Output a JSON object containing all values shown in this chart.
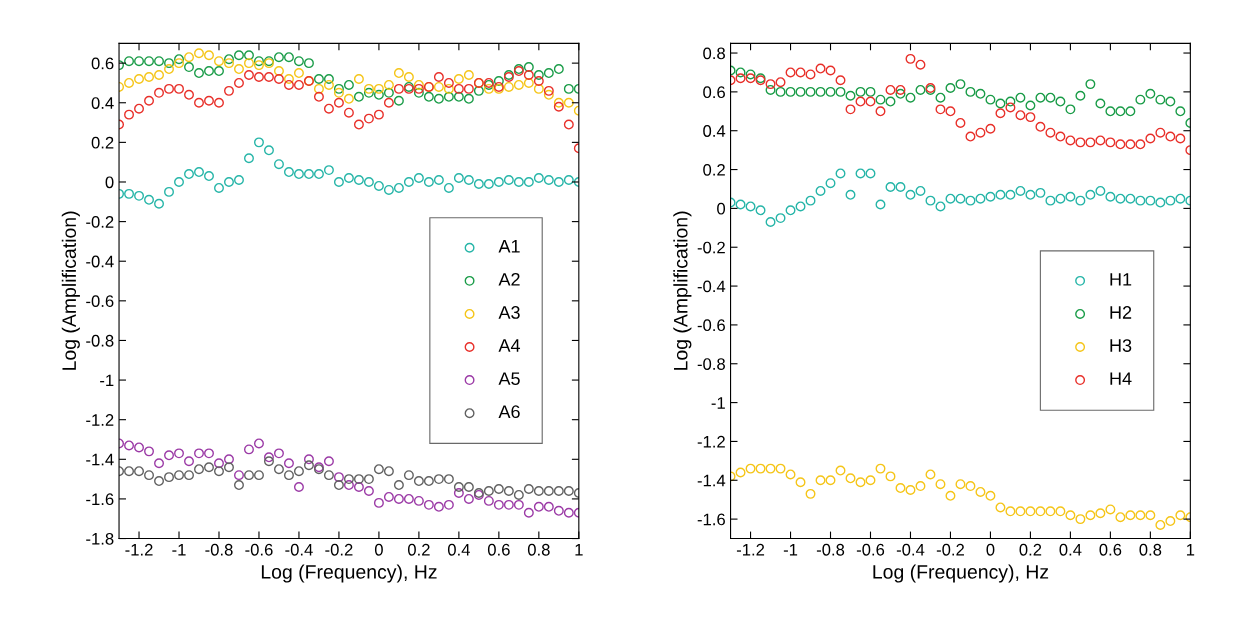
{
  "chart_data": [
    {
      "type": "scatter",
      "xlabel": "Log (Frequency), Hz",
      "ylabel": "Log (Amplification)",
      "marker": "circle",
      "legend": "center right",
      "grid": false,
      "x": [
        -1.3,
        -1.25,
        -1.2,
        -1.15,
        -1.1,
        -1.05,
        -1.0,
        -0.95,
        -0.9,
        -0.85,
        -0.8,
        -0.75,
        -0.7,
        -0.65,
        -0.6,
        -0.55,
        -0.5,
        -0.45,
        -0.4,
        -0.35,
        -0.3,
        -0.25,
        -0.2,
        -0.15,
        -0.1,
        -0.05,
        0,
        0.05,
        0.1,
        0.15,
        0.2,
        0.25,
        0.3,
        0.35,
        0.4,
        0.45,
        0.5,
        0.55,
        0.6,
        0.65,
        0.7,
        0.75,
        0.8,
        0.85,
        0.9,
        0.95,
        1.0
      ],
      "xlim": [
        -1.3,
        1
      ],
      "xticks": [
        -1.2,
        -1,
        -0.8,
        -0.6,
        -0.4,
        -0.2,
        0,
        0.2,
        0.4,
        0.6,
        0.8,
        1
      ],
      "ylim": [
        -1.8,
        0.7
      ],
      "yticks": [
        -1.8,
        -1.6,
        -1.4,
        -1.2,
        -1,
        -0.8,
        -0.6,
        -0.4,
        -0.2,
        0,
        0.2,
        0.4,
        0.6
      ],
      "series": [
        {
          "name": "A1",
          "color": "#26b5a8",
          "values": [
            -0.06,
            -0.06,
            -0.07,
            -0.09,
            -0.11,
            -0.05,
            0.0,
            0.04,
            0.05,
            0.03,
            -0.03,
            0.0,
            0.01,
            0.12,
            0.2,
            0.16,
            0.09,
            0.05,
            0.04,
            0.04,
            0.04,
            0.06,
            0.0,
            0.02,
            0.01,
            0.0,
            -0.02,
            -0.04,
            -0.03,
            0.0,
            0.02,
            0.0,
            0.01,
            -0.03,
            0.02,
            0.01,
            -0.01,
            -0.01,
            0.0,
            0.01,
            0.0,
            0.0,
            0.02,
            0.01,
            0.0,
            0.01,
            0.0
          ]
        },
        {
          "name": "A2",
          "color": "#1a9c48",
          "values": [
            0.59,
            0.61,
            0.61,
            0.61,
            0.61,
            0.6,
            0.62,
            0.58,
            0.55,
            0.56,
            0.56,
            0.62,
            0.64,
            0.64,
            0.61,
            0.61,
            0.63,
            0.63,
            0.61,
            0.6,
            0.52,
            0.52,
            0.47,
            0.49,
            0.43,
            0.45,
            0.44,
            0.45,
            0.41,
            0.48,
            0.45,
            0.43,
            0.42,
            0.43,
            0.43,
            0.42,
            0.46,
            0.49,
            0.51,
            0.54,
            0.57,
            0.58,
            0.54,
            0.55,
            0.57,
            0.47,
            0.47
          ]
        },
        {
          "name": "A3",
          "color": "#f5c518",
          "values": [
            0.48,
            0.5,
            0.52,
            0.53,
            0.54,
            0.57,
            0.6,
            0.63,
            0.65,
            0.64,
            0.61,
            0.6,
            0.57,
            0.6,
            0.59,
            0.6,
            0.56,
            0.52,
            0.55,
            0.51,
            0.47,
            0.49,
            0.45,
            0.42,
            0.52,
            0.47,
            0.47,
            0.49,
            0.55,
            0.53,
            0.49,
            0.48,
            0.48,
            0.47,
            0.52,
            0.54,
            0.5,
            0.47,
            0.47,
            0.48,
            0.49,
            0.5,
            0.47,
            0.44,
            0.4,
            0.4,
            0.36
          ]
        },
        {
          "name": "A4",
          "color": "#e8302a",
          "values": [
            0.29,
            0.34,
            0.37,
            0.41,
            0.45,
            0.47,
            0.47,
            0.44,
            0.4,
            0.41,
            0.4,
            0.46,
            0.5,
            0.54,
            0.53,
            0.53,
            0.52,
            0.49,
            0.49,
            0.51,
            0.43,
            0.37,
            0.4,
            0.35,
            0.29,
            0.32,
            0.34,
            0.4,
            0.47,
            0.47,
            0.47,
            0.48,
            0.53,
            0.5,
            0.47,
            0.47,
            0.5,
            0.5,
            0.48,
            0.53,
            0.56,
            0.54,
            0.51,
            0.46,
            0.38,
            0.29,
            0.17
          ]
        },
        {
          "name": "A5",
          "color": "#9b3aa6",
          "values": [
            -1.32,
            -1.33,
            -1.34,
            -1.36,
            -1.42,
            -1.38,
            -1.37,
            -1.41,
            -1.37,
            -1.37,
            -1.42,
            -1.4,
            -1.48,
            -1.35,
            -1.32,
            -1.39,
            -1.37,
            -1.42,
            -1.54,
            -1.4,
            -1.44,
            -1.41,
            -1.49,
            -1.53,
            -1.54,
            -1.56,
            -1.62,
            -1.59,
            -1.6,
            -1.6,
            -1.61,
            -1.63,
            -1.64,
            -1.63,
            -1.57,
            -1.6,
            -1.58,
            -1.61,
            -1.63,
            -1.63,
            -1.63,
            -1.67,
            -1.64,
            -1.64,
            -1.66,
            -1.67,
            -1.67
          ]
        },
        {
          "name": "A6",
          "color": "#606060",
          "values": [
            -1.46,
            -1.46,
            -1.46,
            -1.48,
            -1.51,
            -1.49,
            -1.48,
            -1.48,
            -1.45,
            -1.44,
            -1.46,
            -1.44,
            -1.53,
            -1.48,
            -1.48,
            -1.41,
            -1.45,
            -1.48,
            -1.46,
            -1.43,
            -1.45,
            -1.48,
            -1.53,
            -1.5,
            -1.5,
            -1.5,
            -1.45,
            -1.46,
            -1.53,
            -1.48,
            -1.51,
            -1.51,
            -1.5,
            -1.5,
            -1.54,
            -1.54,
            -1.57,
            -1.56,
            -1.55,
            -1.56,
            -1.58,
            -1.55,
            -1.56,
            -1.56,
            -1.56,
            -1.56,
            -1.57
          ]
        }
      ]
    },
    {
      "type": "scatter",
      "xlabel": "Log (Frequency), Hz",
      "ylabel": "Log (Amplification)",
      "marker": "circle",
      "legend": "center right",
      "grid": false,
      "x": [
        -1.3,
        -1.25,
        -1.2,
        -1.15,
        -1.1,
        -1.05,
        -1.0,
        -0.95,
        -0.9,
        -0.85,
        -0.8,
        -0.75,
        -0.7,
        -0.65,
        -0.6,
        -0.55,
        -0.5,
        -0.45,
        -0.4,
        -0.35,
        -0.3,
        -0.25,
        -0.2,
        -0.15,
        -0.1,
        -0.05,
        0,
        0.05,
        0.1,
        0.15,
        0.2,
        0.25,
        0.3,
        0.35,
        0.4,
        0.45,
        0.5,
        0.55,
        0.6,
        0.65,
        0.7,
        0.75,
        0.8,
        0.85,
        0.9,
        0.95,
        1.0
      ],
      "xlim": [
        -1.3,
        1
      ],
      "xticks": [
        -1.2,
        -1,
        -0.8,
        -0.6,
        -0.4,
        -0.2,
        0,
        0.2,
        0.4,
        0.6,
        0.8,
        1
      ],
      "ylim": [
        -1.7,
        0.85
      ],
      "yticks": [
        -1.6,
        -1.4,
        -1.2,
        -1,
        -0.8,
        -0.6,
        -0.4,
        -0.2,
        0,
        0.2,
        0.4,
        0.6,
        0.8
      ],
      "series": [
        {
          "name": "H1",
          "color": "#26b5a8",
          "values": [
            0.03,
            0.02,
            0.01,
            -0.01,
            -0.07,
            -0.05,
            -0.01,
            0.01,
            0.04,
            0.09,
            0.13,
            0.18,
            0.07,
            0.18,
            0.18,
            0.02,
            0.11,
            0.11,
            0.07,
            0.09,
            0.04,
            0.01,
            0.05,
            0.05,
            0.04,
            0.05,
            0.06,
            0.07,
            0.07,
            0.09,
            0.07,
            0.08,
            0.04,
            0.05,
            0.06,
            0.04,
            0.07,
            0.09,
            0.06,
            0.05,
            0.05,
            0.04,
            0.04,
            0.03,
            0.04,
            0.05,
            0.04
          ]
        },
        {
          "name": "H2",
          "color": "#1a9c48",
          "values": [
            0.71,
            0.7,
            0.69,
            0.67,
            0.61,
            0.6,
            0.6,
            0.6,
            0.6,
            0.6,
            0.6,
            0.6,
            0.58,
            0.6,
            0.6,
            0.56,
            0.55,
            0.59,
            0.57,
            0.61,
            0.61,
            0.57,
            0.62,
            0.64,
            0.6,
            0.59,
            0.56,
            0.54,
            0.55,
            0.57,
            0.53,
            0.57,
            0.57,
            0.55,
            0.51,
            0.58,
            0.64,
            0.54,
            0.5,
            0.5,
            0.5,
            0.56,
            0.59,
            0.56,
            0.55,
            0.5,
            0.44
          ]
        },
        {
          "name": "H3",
          "color": "#f5c518",
          "values": [
            -1.38,
            -1.36,
            -1.34,
            -1.34,
            -1.34,
            -1.34,
            -1.37,
            -1.41,
            -1.47,
            -1.4,
            -1.4,
            -1.35,
            -1.39,
            -1.41,
            -1.4,
            -1.34,
            -1.38,
            -1.44,
            -1.45,
            -1.43,
            -1.37,
            -1.42,
            -1.48,
            -1.42,
            -1.43,
            -1.46,
            -1.48,
            -1.54,
            -1.56,
            -1.56,
            -1.56,
            -1.56,
            -1.56,
            -1.56,
            -1.58,
            -1.6,
            -1.58,
            -1.57,
            -1.55,
            -1.59,
            -1.58,
            -1.58,
            -1.58,
            -1.63,
            -1.61,
            -1.58,
            -1.59
          ]
        },
        {
          "name": "H4",
          "color": "#e8302a",
          "values": [
            0.66,
            0.67,
            0.67,
            0.66,
            0.64,
            0.65,
            0.7,
            0.7,
            0.69,
            0.72,
            0.71,
            0.66,
            0.51,
            0.55,
            0.55,
            0.5,
            0.61,
            0.61,
            0.77,
            0.74,
            0.62,
            0.51,
            0.5,
            0.44,
            0.37,
            0.39,
            0.41,
            0.49,
            0.52,
            0.48,
            0.47,
            0.42,
            0.39,
            0.37,
            0.35,
            0.34,
            0.34,
            0.35,
            0.34,
            0.33,
            0.33,
            0.33,
            0.36,
            0.39,
            0.37,
            0.36,
            0.3
          ]
        }
      ]
    }
  ]
}
